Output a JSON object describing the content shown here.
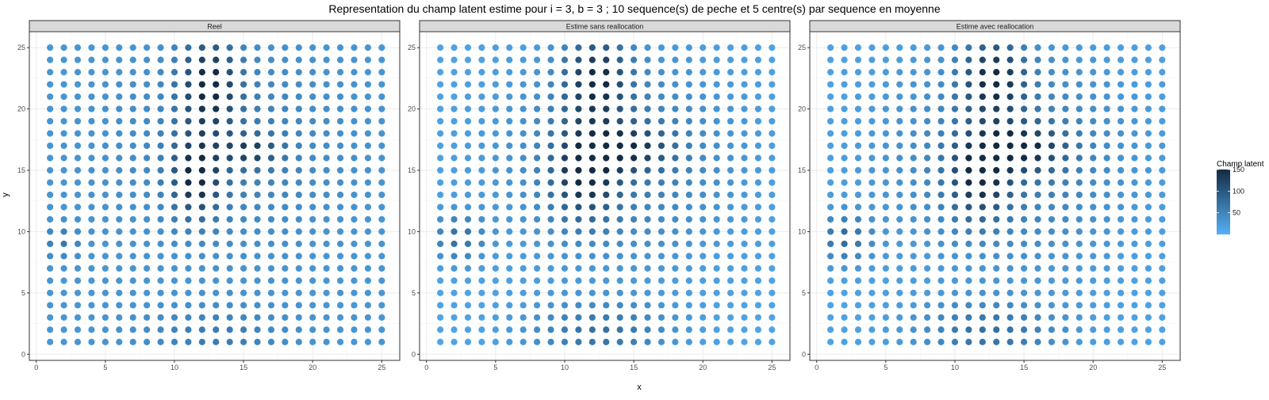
{
  "chart_data": {
    "type": "scatter",
    "title": "Representation du champ latent estime pour i = 3, b = 3 ; 10 sequence(s) de peche et 5 centre(s) par sequence en moyenne",
    "xlabel": "x",
    "ylabel": "y",
    "xlim": [
      -0.5,
      26.3
    ],
    "ylim": [
      -0.5,
      26.3
    ],
    "x_ticks": [
      0,
      5,
      10,
      15,
      20,
      25
    ],
    "y_ticks": [
      0,
      5,
      10,
      15,
      20,
      25
    ],
    "grid": true,
    "panels": [
      {
        "title": "Reel",
        "baseline": 30,
        "blobs": [
          {
            "cx": 12.5,
            "cy": 22,
            "sx": 1.4,
            "sy": 2.6,
            "a": 120
          },
          {
            "cx": 11.6,
            "cy": 14.5,
            "sx": 1.2,
            "sy": 2.2,
            "a": 120
          },
          {
            "cx": 15.5,
            "cy": 16.6,
            "sx": 1.4,
            "sy": 0.9,
            "a": 80
          },
          {
            "cx": 1.8,
            "cy": 9.2,
            "sx": 0.9,
            "sy": 0.9,
            "a": 35
          },
          {
            "cx": 13,
            "cy": 1.6,
            "sx": 3.5,
            "sy": 1.5,
            "a": 30
          },
          {
            "cx": 14,
            "cy": 17,
            "sx": 5,
            "sy": 5,
            "a": 28
          }
        ]
      },
      {
        "title": "Estime sans reallocation",
        "baseline": 14,
        "blobs": [
          {
            "cx": 12.3,
            "cy": 22.5,
            "sx": 1.6,
            "sy": 2.4,
            "a": 120
          },
          {
            "cx": 11.5,
            "cy": 15,
            "sx": 1.6,
            "sy": 2.6,
            "a": 120
          },
          {
            "cx": 14.8,
            "cy": 16.8,
            "sx": 2.0,
            "sy": 1.3,
            "a": 90
          },
          {
            "cx": 2.3,
            "cy": 9.5,
            "sx": 1.3,
            "sy": 1.4,
            "a": 55
          },
          {
            "cx": 12.5,
            "cy": 1.8,
            "sx": 3.5,
            "sy": 1.7,
            "a": 55
          },
          {
            "cx": 14,
            "cy": 16,
            "sx": 6,
            "sy": 6,
            "a": 45
          }
        ]
      },
      {
        "title": "Estime avec reallocation",
        "baseline": 16,
        "blobs": [
          {
            "cx": 12.8,
            "cy": 22.5,
            "sx": 1.6,
            "sy": 2.3,
            "a": 120
          },
          {
            "cx": 11.8,
            "cy": 14.5,
            "sx": 1.5,
            "sy": 2.3,
            "a": 110
          },
          {
            "cx": 14.8,
            "cy": 16.8,
            "sx": 2.2,
            "sy": 1.3,
            "a": 105
          },
          {
            "cx": 2.0,
            "cy": 9.5,
            "sx": 1.3,
            "sy": 1.4,
            "a": 60
          },
          {
            "cx": 12.5,
            "cy": 1.8,
            "sx": 3.5,
            "sy": 1.7,
            "a": 55
          },
          {
            "cx": 14,
            "cy": 16,
            "sx": 6,
            "sy": 6,
            "a": 45
          }
        ]
      }
    ],
    "grid_points": {
      "x_from": 1,
      "x_to": 25,
      "y_from": 1,
      "y_to": 25,
      "step": 1
    },
    "legend": {
      "title": "Champ latent",
      "position": "right",
      "breaks": [
        50,
        100,
        150
      ],
      "min": 0,
      "max": 150,
      "low_color": "#56B1F7",
      "high_color": "#132B43"
    },
    "colors": {
      "strip_fill": "#D9D9D9",
      "panel_border": "#333333",
      "grid_major": "#EBEBEB",
      "text": "#4D4D4D"
    }
  }
}
